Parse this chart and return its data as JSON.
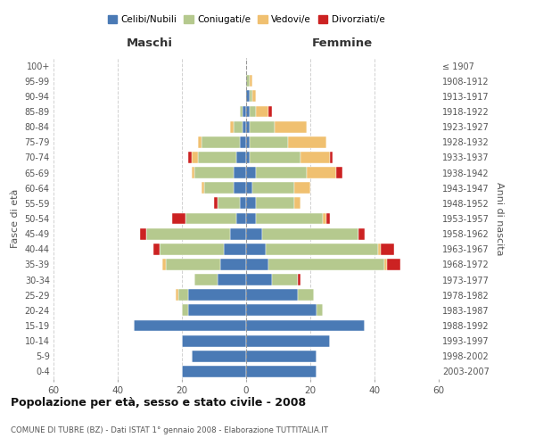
{
  "age_groups": [
    "0-4",
    "5-9",
    "10-14",
    "15-19",
    "20-24",
    "25-29",
    "30-34",
    "35-39",
    "40-44",
    "45-49",
    "50-54",
    "55-59",
    "60-64",
    "65-69",
    "70-74",
    "75-79",
    "80-84",
    "85-89",
    "90-94",
    "95-99",
    "100+"
  ],
  "birth_years": [
    "2003-2007",
    "1998-2002",
    "1993-1997",
    "1988-1992",
    "1983-1987",
    "1978-1982",
    "1973-1977",
    "1968-1972",
    "1963-1967",
    "1958-1962",
    "1953-1957",
    "1948-1952",
    "1943-1947",
    "1938-1942",
    "1933-1937",
    "1928-1932",
    "1923-1927",
    "1918-1922",
    "1913-1917",
    "1908-1912",
    "≤ 1907"
  ],
  "colors": {
    "celibi": "#4a7ab5",
    "coniugati": "#b5c98e",
    "vedovi": "#f0c070",
    "divorziati": "#cc2222"
  },
  "maschi": {
    "celibi": [
      20,
      17,
      20,
      35,
      18,
      18,
      9,
      8,
      7,
      5,
      3,
      2,
      4,
      4,
      3,
      2,
      1,
      1,
      0,
      0,
      0
    ],
    "coniugati": [
      0,
      0,
      0,
      0,
      2,
      3,
      7,
      17,
      20,
      26,
      16,
      7,
      9,
      12,
      12,
      12,
      3,
      1,
      0,
      0,
      0
    ],
    "vedovi": [
      0,
      0,
      0,
      0,
      0,
      1,
      0,
      1,
      0,
      0,
      0,
      0,
      1,
      1,
      2,
      1,
      1,
      0,
      0,
      0,
      0
    ],
    "divorziati": [
      0,
      0,
      0,
      0,
      0,
      0,
      0,
      0,
      2,
      2,
      4,
      1,
      0,
      0,
      1,
      0,
      0,
      0,
      0,
      0,
      0
    ]
  },
  "femmine": {
    "celibi": [
      22,
      22,
      26,
      37,
      22,
      16,
      8,
      7,
      6,
      5,
      3,
      3,
      2,
      3,
      1,
      1,
      1,
      1,
      1,
      0,
      0
    ],
    "coniugati": [
      0,
      0,
      0,
      0,
      2,
      5,
      8,
      36,
      35,
      30,
      21,
      12,
      13,
      16,
      16,
      12,
      8,
      2,
      1,
      1,
      0
    ],
    "vedovi": [
      0,
      0,
      0,
      0,
      0,
      0,
      0,
      1,
      1,
      0,
      1,
      2,
      5,
      9,
      9,
      12,
      10,
      4,
      1,
      1,
      0
    ],
    "divorziati": [
      0,
      0,
      0,
      0,
      0,
      0,
      1,
      4,
      4,
      2,
      1,
      0,
      0,
      2,
      1,
      0,
      0,
      1,
      0,
      0,
      0
    ]
  },
  "title": "Popolazione per età, sesso e stato civile - 2008",
  "subtitle": "COMUNE DI TUBRE (BZ) - Dati ISTAT 1° gennaio 2008 - Elaborazione TUTTITALIA.IT",
  "xlabel_left": "Maschi",
  "xlabel_right": "Femmine",
  "ylabel_left": "Fasce di età",
  "ylabel_right": "Anni di nascita",
  "xlim": 60,
  "legend_labels": [
    "Celibi/Nubili",
    "Coniugati/e",
    "Vedovi/e",
    "Divorziati/e"
  ],
  "bg_color": "#ffffff",
  "grid_color": "#cccccc"
}
